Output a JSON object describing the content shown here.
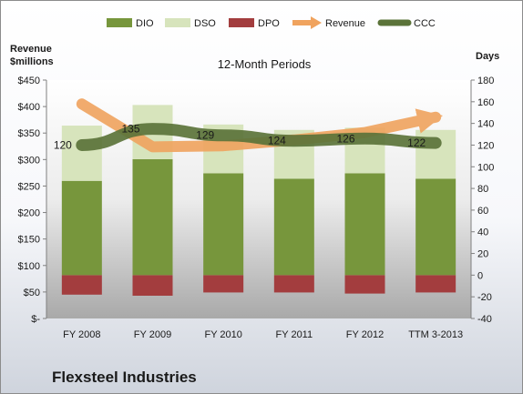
{
  "company": "Flexsteel Industries",
  "chart_data": {
    "type": "bar",
    "title": "12-Month Periods",
    "left_axis_label": [
      "Revenue",
      "$millions"
    ],
    "right_axis_label": "Days",
    "categories": [
      "FY 2008",
      "FY 2009",
      "FY 2010",
      "FY 2011",
      "FY 2012",
      "TTM 3-2013"
    ],
    "left_ticks": [
      "$450",
      "$400",
      "$350",
      "$300",
      "$250",
      "$200",
      "$150",
      "$100",
      "$50",
      "$-"
    ],
    "left_range": [
      0,
      450
    ],
    "right_ticks": [
      "180",
      "160",
      "140",
      "120",
      "100",
      "80",
      "60",
      "40",
      "20",
      "0",
      "-20",
      "-40"
    ],
    "right_range": [
      -40,
      180
    ],
    "grid": false,
    "legend_position": "top",
    "series": [
      {
        "name": "DIO",
        "kind": "bar",
        "axis": "days",
        "color": "#77963c",
        "values": [
          87,
          107,
          94,
          89,
          94,
          89
        ]
      },
      {
        "name": "DSO",
        "kind": "bar",
        "axis": "days",
        "color": "#d7e4bc",
        "values": [
          51,
          50,
          45,
          45,
          42,
          45
        ]
      },
      {
        "name": "DPO",
        "kind": "bar",
        "axis": "days",
        "color": "#a33d3e",
        "values": [
          -18,
          -19,
          -16,
          -16,
          -17,
          -16
        ]
      },
      {
        "name": "Revenue",
        "kind": "arrow",
        "axis": "revenue",
        "color": "#f0a35e",
        "values": [
          405,
          324,
          326,
          337,
          351,
          380
        ]
      },
      {
        "name": "CCC",
        "kind": "line",
        "axis": "days",
        "color": "#5b7339",
        "values": [
          120,
          135,
          129,
          124,
          126,
          122
        ]
      }
    ],
    "ccc_labels": [
      "120",
      "135",
      "129",
      "124",
      "126",
      "122"
    ]
  }
}
